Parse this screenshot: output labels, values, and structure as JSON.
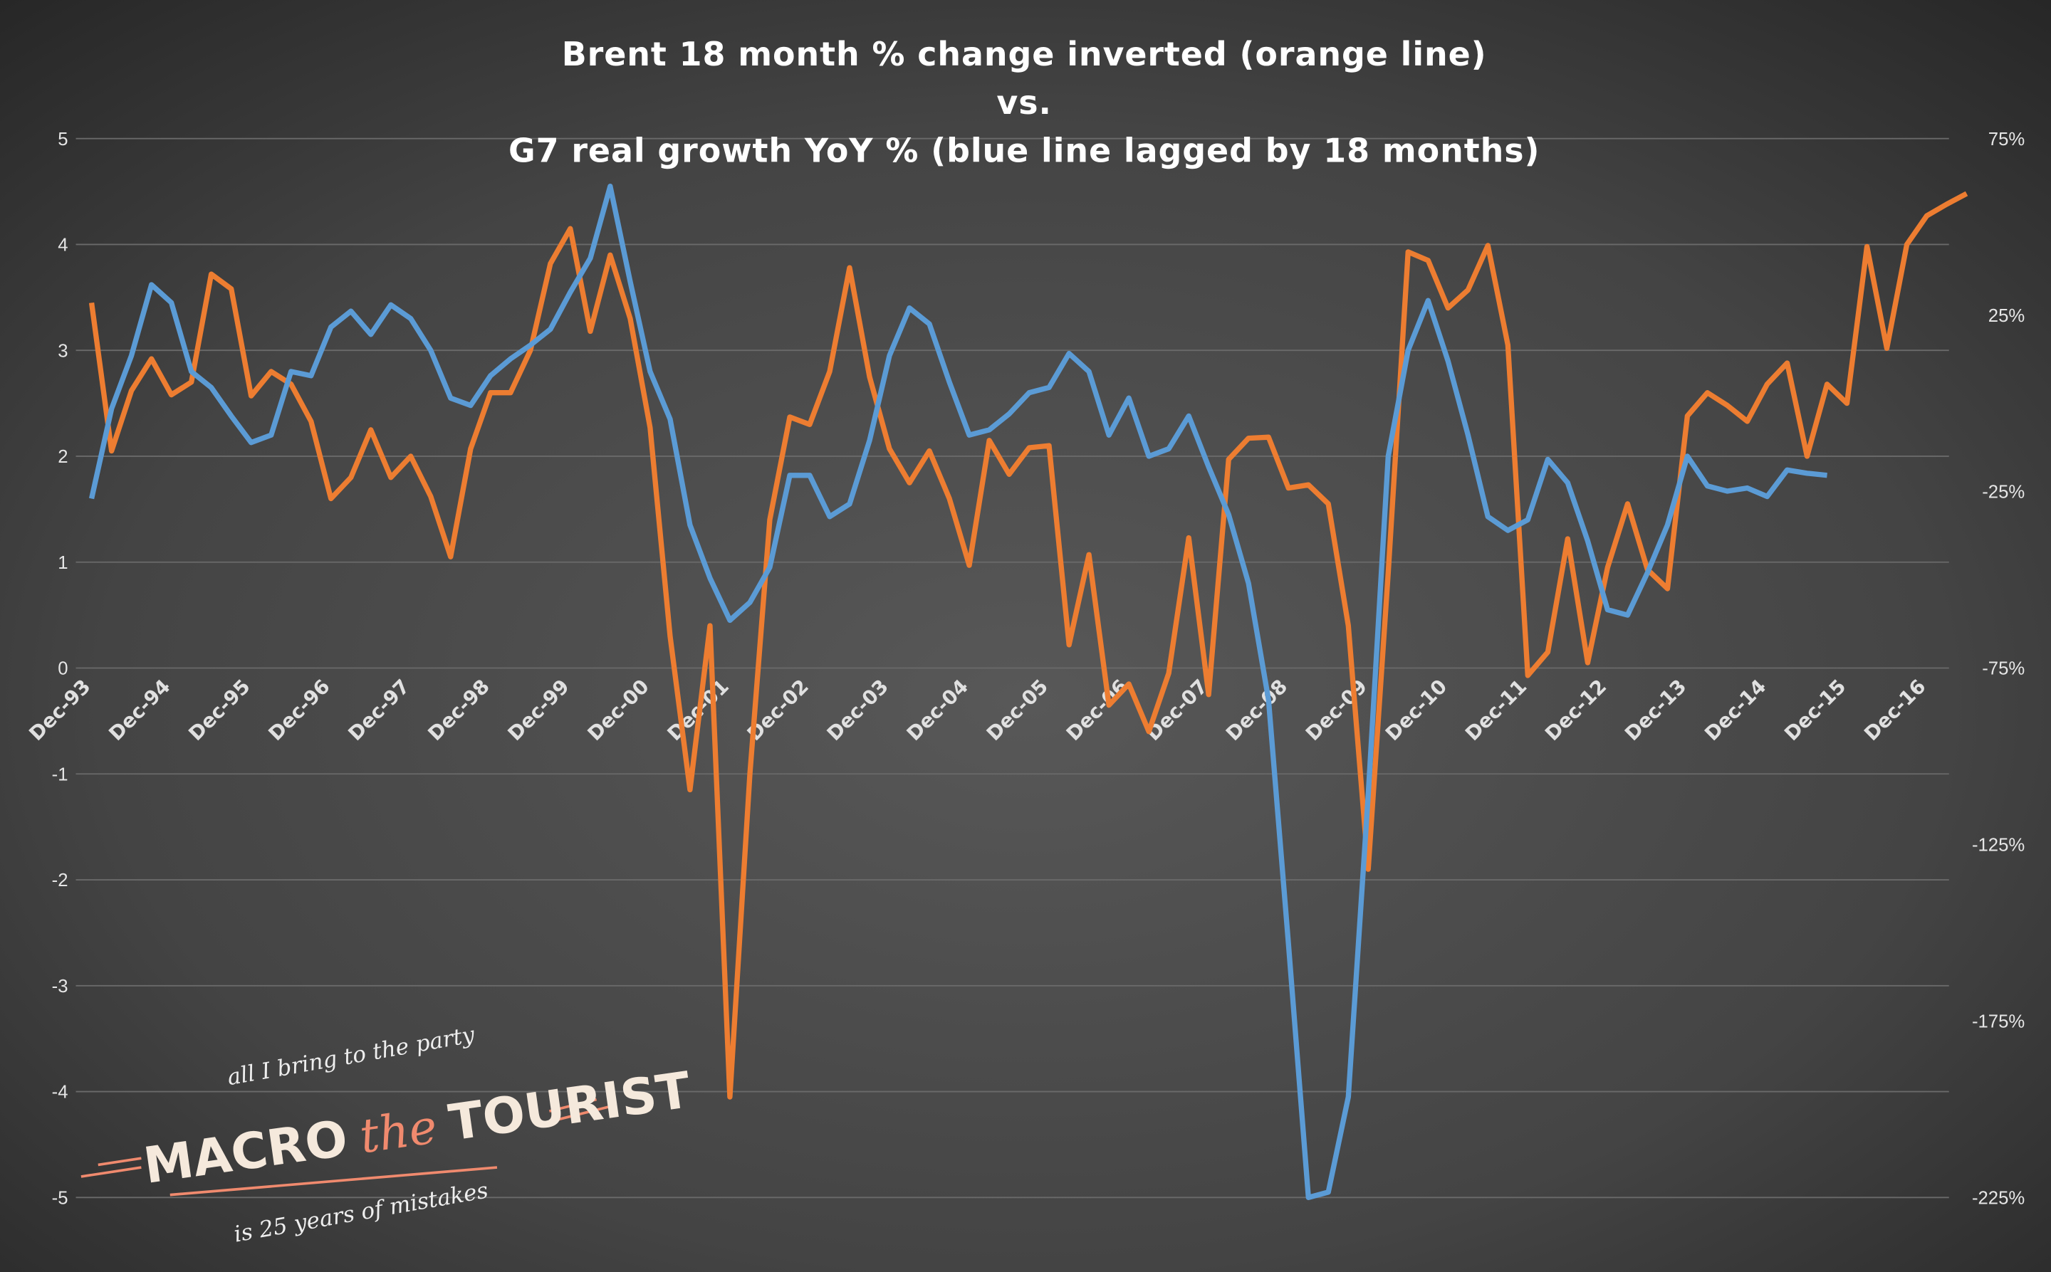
{
  "chart_data": {
    "type": "line",
    "title_lines": [
      "Brent 18 month % change inverted (orange line)",
      "vs.",
      "G7 real growth YoY % (blue line lagged by 18 months)"
    ],
    "x_tick_labels": [
      "Dec-93",
      "Dec-94",
      "Dec-95",
      "Dec-96",
      "Dec-97",
      "Dec-98",
      "Dec-99",
      "Dec-00",
      "Dec-01",
      "Dec-02",
      "Dec-03",
      "Dec-04",
      "Dec-05",
      "Dec-06",
      "Dec-07",
      "Dec-08",
      "Dec-09",
      "Dec-10",
      "Dec-11",
      "Dec-12",
      "Dec-13",
      "Dec-14",
      "Dec-15",
      "Dec-16"
    ],
    "y_left": {
      "ticks": [
        "5",
        "4",
        "3",
        "2",
        "1",
        "0",
        "-1",
        "-2",
        "-3",
        "-4",
        "-5"
      ],
      "ylim": [
        -5,
        5
      ]
    },
    "y_right": {
      "ticks": [
        "75%",
        "25%",
        "-25%",
        "-75%",
        "-125%",
        "-175%",
        "-225%"
      ],
      "ylim": [
        -225,
        75
      ]
    },
    "grid": true,
    "legend": "none",
    "series": [
      {
        "axis": "left",
        "color": "#5B9BD5",
        "values": [
          1.6,
          2.45,
          2.95,
          3.62,
          3.45,
          2.8,
          2.65,
          2.38,
          2.13,
          2.2,
          2.8,
          2.76,
          3.22,
          3.37,
          3.15,
          3.43,
          3.3,
          3.0,
          2.55,
          2.48,
          2.76,
          2.92,
          3.05,
          3.2,
          3.55,
          3.87,
          4.55,
          3.65,
          2.8,
          2.35,
          1.35,
          0.85,
          0.45,
          0.62,
          0.95,
          1.82,
          1.82,
          1.43,
          1.55,
          2.15,
          2.95,
          3.4,
          3.25,
          2.7,
          2.2,
          2.25,
          2.4,
          2.6,
          2.65,
          2.97,
          2.8,
          2.2,
          2.55,
          2.0,
          2.07,
          2.38,
          1.9,
          1.45,
          0.8,
          -0.3,
          -2.6,
          -5.0,
          -4.95,
          -4.05,
          -1.2,
          2.0,
          3.0,
          3.47,
          2.9,
          2.2,
          1.43,
          1.3,
          1.4,
          1.97,
          1.75,
          1.2,
          0.55,
          0.5,
          0.9,
          1.35,
          2.0,
          1.72,
          1.67,
          1.7,
          1.62,
          1.87,
          1.84,
          1.82
        ]
      },
      {
        "axis": "right",
        "color": "#ED7D31",
        "values": [
          28.5,
          -13.5,
          3.6,
          12.6,
          2.4,
          6,
          36.6,
          32.4,
          2.1,
          9,
          5.4,
          -5.1,
          -27,
          -21,
          -7.5,
          -21,
          -15,
          -26.4,
          -43.5,
          -12.9,
          3,
          3,
          15,
          39.6,
          49.5,
          20.4,
          42,
          24,
          -6.9,
          -66,
          -109.5,
          -63,
          -196.5,
          -105,
          -33,
          -3.9,
          -6,
          9,
          38.4,
          7.5,
          -12.9,
          -22.5,
          -13.5,
          -27,
          -45.9,
          -10.5,
          -20.1,
          -12.6,
          -12,
          -68.4,
          -42.9,
          -85.5,
          -79.5,
          -93,
          -76.5,
          -38.1,
          -82.5,
          -15.9,
          -9.9,
          -9.6,
          -24,
          -23.1,
          -28.5,
          -63,
          -132,
          -48,
          42.9,
          40.5,
          27,
          32.1,
          44.7,
          16.5,
          -77.1,
          -70.5,
          -38.4,
          -73.5,
          -46.5,
          -28.5,
          -47.1,
          -52.5,
          -3.6,
          3,
          -0.6,
          -5.1,
          5.4,
          11.4,
          -15,
          5.4,
          0,
          44.4,
          15.6,
          45,
          53.1,
          56.4,
          59.4
        ]
      }
    ]
  },
  "logo": {
    "tagline_top": "all I bring to the party",
    "word1": "MACRO",
    "word2": "the",
    "word3": "TOURIST",
    "tagline_bottom": "is 25 years of mistakes"
  }
}
